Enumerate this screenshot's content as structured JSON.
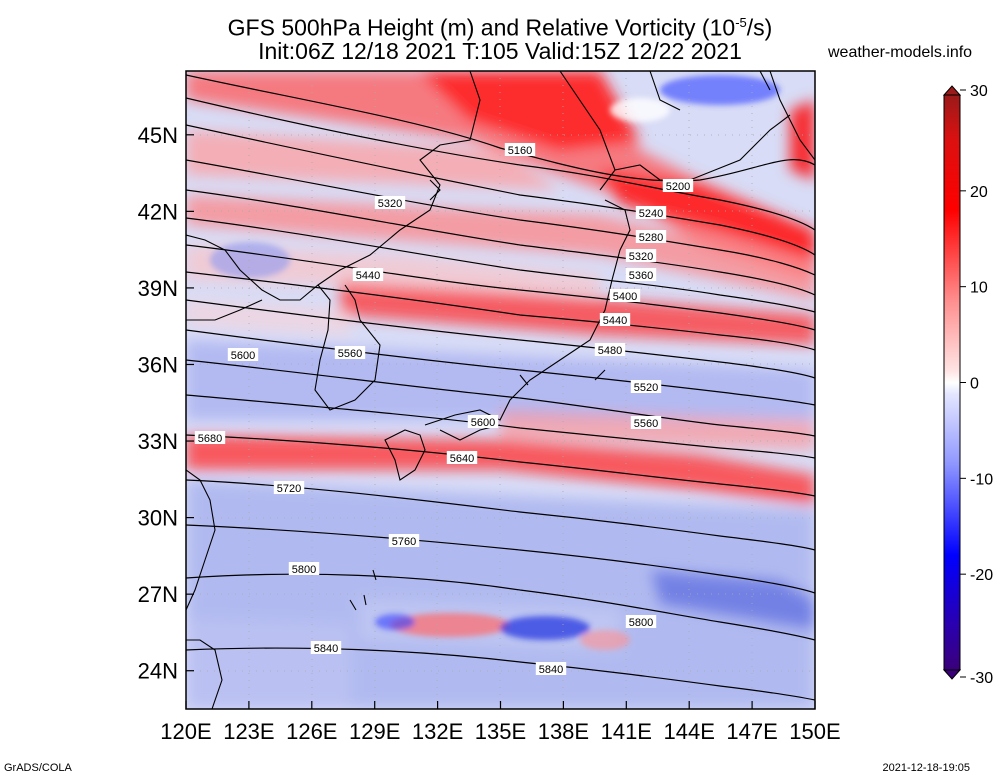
{
  "header": {
    "title_line1_pre": "GFS 500hPa Height (m) and Relative Vorticity (10",
    "title_line1_sup": "-5",
    "title_line1_post": "/s)",
    "title_line2": "Init:06Z 12/18 2021 T:105 Valid:15Z 12/22 2021",
    "site": "weather-models.info"
  },
  "footer": {
    "left": "GrADS/COLA",
    "right": "2021-12-18-19:05"
  },
  "map": {
    "lon_labels": [
      "120E",
      "123E",
      "126E",
      "129E",
      "132E",
      "135E",
      "138E",
      "141E",
      "144E",
      "147E",
      "150E"
    ],
    "lat_labels": [
      "45N",
      "42N",
      "39N",
      "36N",
      "33N",
      "30N",
      "27N",
      "24N"
    ],
    "lon_range": [
      120,
      150
    ],
    "lat_range": [
      22.5,
      47.5
    ]
  },
  "colorbar": {
    "labels": [
      "30",
      "20",
      "10",
      "0",
      "-10",
      "-20",
      "-30"
    ],
    "range": [
      -30,
      30
    ],
    "colors": {
      "max": "#9b1a1a",
      "red": "#ff0000",
      "pink": "#ffb0b0",
      "zero": "#ffffff",
      "lightblue": "#b0b8ff",
      "blue": "#0000ff",
      "min": "#3a007a"
    }
  },
  "contours": [
    {
      "label": "5160",
      "lat": 43.7
    },
    {
      "label": "5200",
      "lat": 43.1
    },
    {
      "label": "5240",
      "lat": 42.0
    },
    {
      "label": "5280",
      "lat": 41.1
    },
    {
      "label": "5320",
      "lat": 40.3
    },
    {
      "label": "5360",
      "lat": 39.3
    },
    {
      "label": "5400",
      "lat": 38.5
    },
    {
      "label": "5440",
      "lat": 37.5
    },
    {
      "label": "5480",
      "lat": 36.4
    },
    {
      "label": "5520",
      "lat": 35.2
    },
    {
      "label": "5560",
      "lat": 33.9
    },
    {
      "label": "5600",
      "lat": 33.9
    },
    {
      "label": "5640",
      "lat": 32.3
    },
    {
      "label": "5680",
      "lat": 32.9
    },
    {
      "label": "5720",
      "lat": 31.3
    },
    {
      "label": "5760",
      "lat": 29.4
    },
    {
      "label": "5800",
      "lat": 27.2
    },
    {
      "label": "5840",
      "lat": 24.4
    }
  ]
}
